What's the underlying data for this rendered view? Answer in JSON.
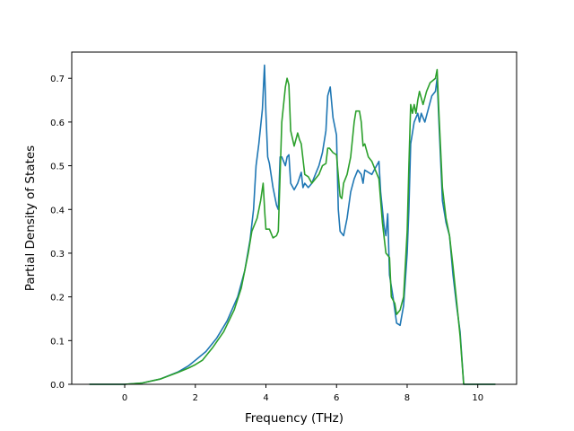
{
  "chart_data": {
    "type": "line",
    "xlabel": "Frequency (THz)",
    "ylabel": "Partial Density of States",
    "xlim": [
      -1.5,
      11.1
    ],
    "ylim": [
      0.0,
      0.76
    ],
    "x_ticks": [
      0,
      2,
      4,
      6,
      8,
      10
    ],
    "x_tick_labels": [
      "0",
      "2",
      "4",
      "6",
      "8",
      "10"
    ],
    "y_ticks": [
      0.0,
      0.1,
      0.2,
      0.3,
      0.4,
      0.5,
      0.6,
      0.7
    ],
    "y_tick_labels": [
      "0.0",
      "0.1",
      "0.2",
      "0.3",
      "0.4",
      "0.5",
      "0.6",
      "0.7"
    ],
    "grid": false,
    "series": [
      {
        "color": "#1f77b4",
        "points": [
          [
            -1.0,
            0.0
          ],
          [
            0.0,
            0.0
          ],
          [
            0.5,
            0.003
          ],
          [
            1.0,
            0.012
          ],
          [
            1.5,
            0.028
          ],
          [
            1.8,
            0.042
          ],
          [
            2.0,
            0.055
          ],
          [
            2.3,
            0.075
          ],
          [
            2.6,
            0.105
          ],
          [
            2.9,
            0.145
          ],
          [
            3.2,
            0.2
          ],
          [
            3.4,
            0.26
          ],
          [
            3.55,
            0.33
          ],
          [
            3.65,
            0.4
          ],
          [
            3.72,
            0.5
          ],
          [
            3.8,
            0.55
          ],
          [
            3.9,
            0.63
          ],
          [
            3.96,
            0.73
          ],
          [
            4.0,
            0.62
          ],
          [
            4.05,
            0.52
          ],
          [
            4.1,
            0.505
          ],
          [
            4.2,
            0.45
          ],
          [
            4.3,
            0.41
          ],
          [
            4.35,
            0.4
          ],
          [
            4.4,
            0.52
          ],
          [
            4.45,
            0.52
          ],
          [
            4.55,
            0.5
          ],
          [
            4.6,
            0.52
          ],
          [
            4.65,
            0.525
          ],
          [
            4.7,
            0.46
          ],
          [
            4.8,
            0.445
          ],
          [
            4.9,
            0.46
          ],
          [
            5.0,
            0.485
          ],
          [
            5.05,
            0.45
          ],
          [
            5.1,
            0.46
          ],
          [
            5.2,
            0.45
          ],
          [
            5.3,
            0.46
          ],
          [
            5.4,
            0.48
          ],
          [
            5.5,
            0.5
          ],
          [
            5.6,
            0.53
          ],
          [
            5.7,
            0.58
          ],
          [
            5.75,
            0.66
          ],
          [
            5.82,
            0.68
          ],
          [
            5.9,
            0.61
          ],
          [
            6.0,
            0.57
          ],
          [
            6.05,
            0.4
          ],
          [
            6.1,
            0.35
          ],
          [
            6.2,
            0.34
          ],
          [
            6.3,
            0.38
          ],
          [
            6.4,
            0.44
          ],
          [
            6.5,
            0.47
          ],
          [
            6.6,
            0.49
          ],
          [
            6.7,
            0.48
          ],
          [
            6.75,
            0.46
          ],
          [
            6.8,
            0.49
          ],
          [
            6.9,
            0.485
          ],
          [
            7.0,
            0.48
          ],
          [
            7.1,
            0.495
          ],
          [
            7.2,
            0.51
          ],
          [
            7.25,
            0.44
          ],
          [
            7.35,
            0.36
          ],
          [
            7.4,
            0.34
          ],
          [
            7.45,
            0.39
          ],
          [
            7.5,
            0.25
          ],
          [
            7.6,
            0.2
          ],
          [
            7.7,
            0.14
          ],
          [
            7.8,
            0.135
          ],
          [
            7.9,
            0.18
          ],
          [
            8.0,
            0.3
          ],
          [
            8.05,
            0.4
          ],
          [
            8.1,
            0.55
          ],
          [
            8.2,
            0.6
          ],
          [
            8.3,
            0.62
          ],
          [
            8.35,
            0.6
          ],
          [
            8.4,
            0.62
          ],
          [
            8.5,
            0.6
          ],
          [
            8.6,
            0.63
          ],
          [
            8.7,
            0.66
          ],
          [
            8.8,
            0.67
          ],
          [
            8.85,
            0.7
          ],
          [
            8.9,
            0.6
          ],
          [
            9.0,
            0.42
          ],
          [
            9.1,
            0.37
          ],
          [
            9.2,
            0.34
          ],
          [
            9.3,
            0.25
          ],
          [
            9.4,
            0.18
          ],
          [
            9.5,
            0.12
          ],
          [
            9.6,
            0.0
          ],
          [
            10.5,
            0.0
          ]
        ]
      },
      {
        "color": "#2ca02c",
        "points": [
          [
            -1.0,
            0.0
          ],
          [
            0.0,
            0.0
          ],
          [
            0.5,
            0.003
          ],
          [
            1.0,
            0.012
          ],
          [
            1.5,
            0.027
          ],
          [
            1.8,
            0.037
          ],
          [
            2.0,
            0.045
          ],
          [
            2.2,
            0.055
          ],
          [
            2.5,
            0.085
          ],
          [
            2.8,
            0.12
          ],
          [
            3.1,
            0.17
          ],
          [
            3.3,
            0.22
          ],
          [
            3.5,
            0.3
          ],
          [
            3.6,
            0.35
          ],
          [
            3.75,
            0.38
          ],
          [
            3.85,
            0.42
          ],
          [
            3.92,
            0.46
          ],
          [
            3.97,
            0.39
          ],
          [
            4.0,
            0.355
          ],
          [
            4.1,
            0.355
          ],
          [
            4.2,
            0.335
          ],
          [
            4.3,
            0.34
          ],
          [
            4.35,
            0.35
          ],
          [
            4.45,
            0.6
          ],
          [
            4.55,
            0.68
          ],
          [
            4.6,
            0.7
          ],
          [
            4.65,
            0.685
          ],
          [
            4.7,
            0.58
          ],
          [
            4.8,
            0.545
          ],
          [
            4.9,
            0.575
          ],
          [
            4.95,
            0.56
          ],
          [
            5.0,
            0.55
          ],
          [
            5.1,
            0.48
          ],
          [
            5.2,
            0.475
          ],
          [
            5.3,
            0.46
          ],
          [
            5.4,
            0.47
          ],
          [
            5.5,
            0.48
          ],
          [
            5.6,
            0.5
          ],
          [
            5.7,
            0.505
          ],
          [
            5.75,
            0.54
          ],
          [
            5.8,
            0.54
          ],
          [
            5.9,
            0.53
          ],
          [
            6.0,
            0.525
          ],
          [
            6.1,
            0.43
          ],
          [
            6.15,
            0.425
          ],
          [
            6.2,
            0.46
          ],
          [
            6.3,
            0.48
          ],
          [
            6.4,
            0.52
          ],
          [
            6.5,
            0.6
          ],
          [
            6.55,
            0.625
          ],
          [
            6.65,
            0.625
          ],
          [
            6.7,
            0.6
          ],
          [
            6.75,
            0.545
          ],
          [
            6.8,
            0.55
          ],
          [
            6.9,
            0.52
          ],
          [
            7.0,
            0.51
          ],
          [
            7.1,
            0.49
          ],
          [
            7.2,
            0.47
          ],
          [
            7.3,
            0.37
          ],
          [
            7.4,
            0.3
          ],
          [
            7.5,
            0.29
          ],
          [
            7.55,
            0.2
          ],
          [
            7.65,
            0.185
          ],
          [
            7.7,
            0.16
          ],
          [
            7.8,
            0.17
          ],
          [
            7.9,
            0.2
          ],
          [
            8.0,
            0.35
          ],
          [
            8.05,
            0.5
          ],
          [
            8.1,
            0.64
          ],
          [
            8.15,
            0.62
          ],
          [
            8.2,
            0.64
          ],
          [
            8.25,
            0.62
          ],
          [
            8.3,
            0.65
          ],
          [
            8.35,
            0.67
          ],
          [
            8.45,
            0.64
          ],
          [
            8.55,
            0.67
          ],
          [
            8.65,
            0.69
          ],
          [
            8.8,
            0.7
          ],
          [
            8.85,
            0.72
          ],
          [
            8.9,
            0.62
          ],
          [
            9.0,
            0.45
          ],
          [
            9.1,
            0.38
          ],
          [
            9.2,
            0.34
          ],
          [
            9.3,
            0.27
          ],
          [
            9.4,
            0.19
          ],
          [
            9.5,
            0.11
          ],
          [
            9.6,
            0.0
          ],
          [
            10.5,
            0.0
          ]
        ]
      }
    ]
  }
}
